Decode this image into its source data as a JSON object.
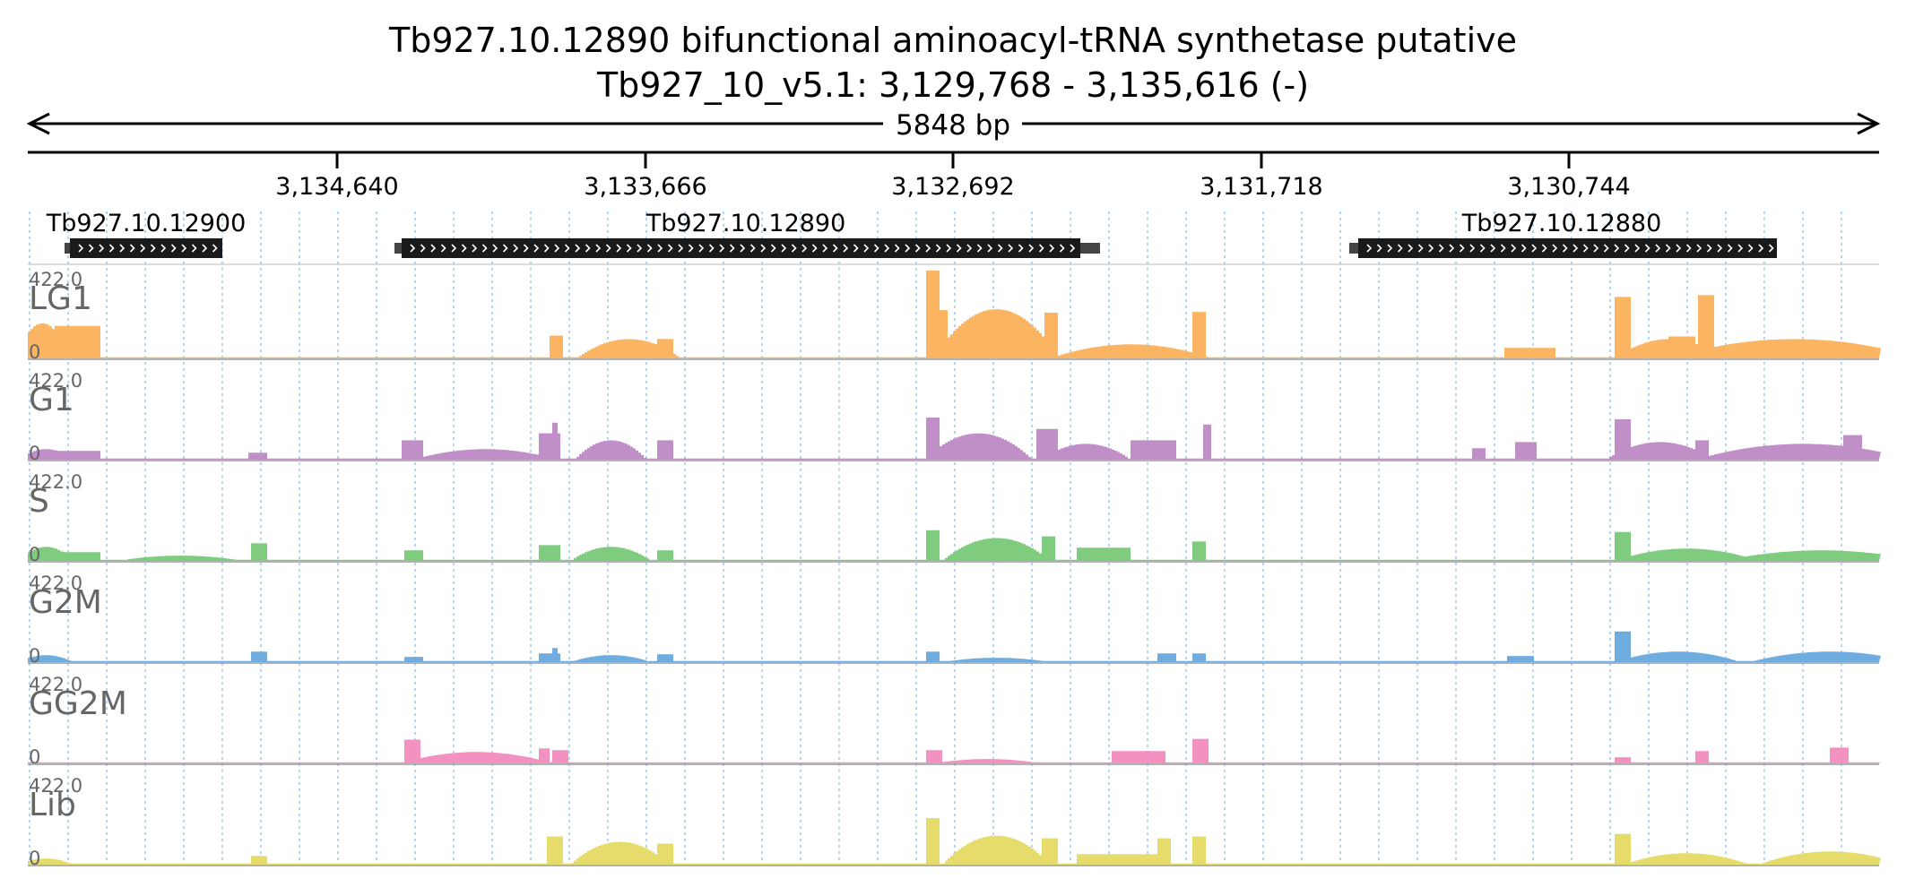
{
  "header": {
    "gene_id": "Tb927.10.12890",
    "gene_description": "bifunctional aminoacyl-tRNA synthetase  putative",
    "title_line1": "Tb927.10.12890  bifunctional aminoacyl-tRNA synthetase  putative",
    "locus": "Tb927_10_v5.1: 3,129,768 - 3,135,616 (-)"
  },
  "region": {
    "length_label": "5848 bp",
    "start": 3129768,
    "end": 3135616,
    "strand": "-",
    "ticks": [
      "3,134,640",
      "3,133,666",
      "3,132,692",
      "3,131,718",
      "3,130,744"
    ]
  },
  "genes": [
    {
      "id": "Tb927.10.12900",
      "label": "Tb927.10.12900"
    },
    {
      "id": "Tb927.10.12890",
      "label": "Tb927.10.12890"
    },
    {
      "id": "Tb927.10.12880",
      "label": "Tb927.10.12880"
    }
  ],
  "tracks": [
    {
      "name": "LG1",
      "max_label": "422.0",
      "min_label": "0",
      "color": "#fbb461"
    },
    {
      "name": "G1",
      "max_label": "422.0",
      "min_label": "0",
      "color": "#c08fc7"
    },
    {
      "name": "S",
      "max_label": "422.0",
      "min_label": "0",
      "color": "#7fcc7f"
    },
    {
      "name": "G2M",
      "max_label": "422.0",
      "min_label": "0",
      "color": "#6fade0"
    },
    {
      "name": "GG2M",
      "max_label": "422.0",
      "min_label": "0",
      "color": "#f391c1"
    },
    {
      "name": "Lib",
      "max_label": "422.0",
      "min_label": "0",
      "color": "#e6dc6b"
    }
  ]
}
